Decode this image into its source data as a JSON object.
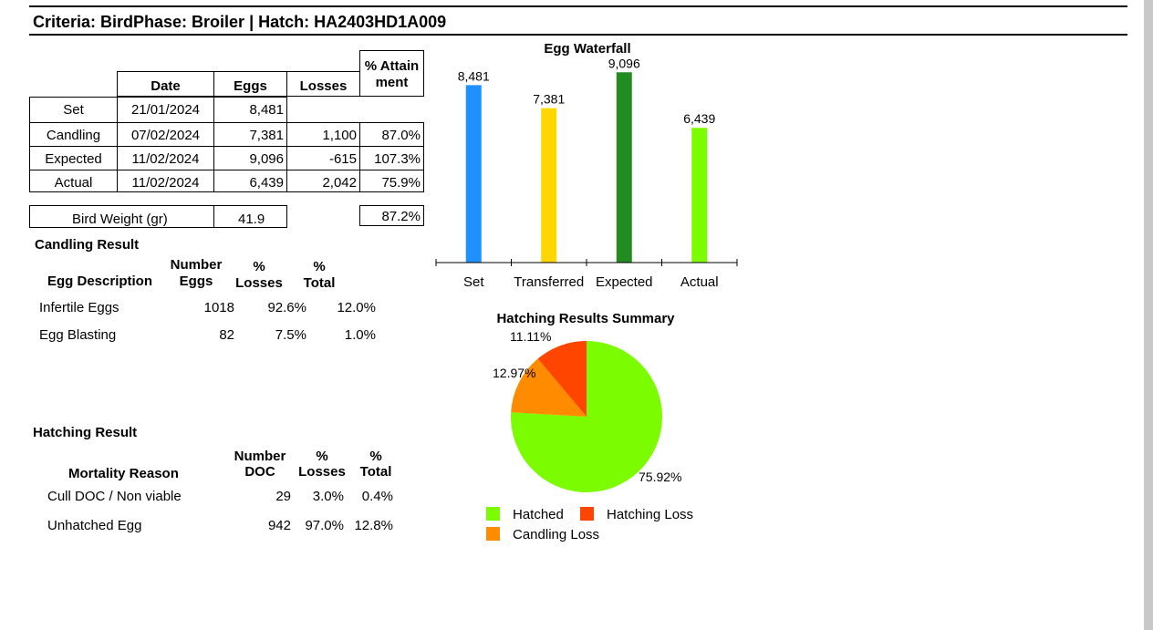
{
  "header": {
    "title": "Criteria: BirdPhase: Broiler | Hatch: HA2403HD1A009"
  },
  "summary_table": {
    "columns": {
      "date": "Date",
      "eggs": "Eggs",
      "losses": "Losses",
      "attain_1": "% Attain",
      "attain_2": "ment"
    },
    "rows": [
      {
        "label": "Set",
        "date": "21/01/2024",
        "eggs": "8,481",
        "losses": "",
        "attain": ""
      },
      {
        "label": "Candling",
        "date": "07/02/2024",
        "eggs": "7,381",
        "losses": "1,100",
        "attain": "87.0%"
      },
      {
        "label": "Expected",
        "date": "11/02/2024",
        "eggs": "9,096",
        "losses": "-615",
        "attain": "107.3%"
      },
      {
        "label": "Actual",
        "date": "11/02/2024",
        "eggs": "6,439",
        "losses": "2,042",
        "attain": "75.9%"
      }
    ],
    "bird_weight": {
      "label": "Bird Weight (gr)",
      "value": "41.9",
      "attain": "87.2%"
    }
  },
  "candling": {
    "title": "Candling Result",
    "columns": {
      "desc": "Egg Description",
      "num_1": "Number",
      "num_2": "Eggs",
      "loss_1": "%",
      "loss_2": "Losses",
      "total_1": "%",
      "total_2": "Total"
    },
    "rows": [
      {
        "desc": "Infertile Eggs",
        "num": "1018",
        "loss": "92.6%",
        "total": "12.0%"
      },
      {
        "desc": "Egg Blasting",
        "num": "82",
        "loss": "7.5%",
        "total": "1.0%"
      }
    ]
  },
  "hatching": {
    "title": "Hatching Result",
    "columns": {
      "reason": "Mortality Reason",
      "num_1": "Number",
      "num_2": "DOC",
      "loss_1": "%",
      "loss_2": "Losses",
      "total_1": "%",
      "total_2": "Total"
    },
    "rows": [
      {
        "reason": "Cull DOC / Non viable",
        "num": "29",
        "loss": "3.0%",
        "total": "0.4%"
      },
      {
        "reason": "Unhatched Egg",
        "num": "942",
        "loss": "97.0%",
        "total": "12.8%"
      }
    ]
  },
  "chart_data": [
    {
      "type": "bar",
      "title": "Egg Waterfall",
      "categories": [
        "Set",
        "Transferred",
        "Expected",
        "Actual"
      ],
      "values": [
        8481,
        7381,
        9096,
        6439
      ],
      "value_labels": [
        "8,481",
        "7,381",
        "9,096",
        "6,439"
      ],
      "colors": [
        "#1e90ff",
        "#ffd700",
        "#228b22",
        "#7cfc00"
      ],
      "ylim": [
        0,
        9500
      ],
      "grid": false
    },
    {
      "type": "pie",
      "title": "Hatching Results Summary",
      "labels": [
        "Hatched",
        "Candling Loss",
        "Hatching Loss"
      ],
      "values": [
        75.92,
        12.97,
        11.11
      ],
      "value_labels": [
        "75.92%",
        "12.97%",
        "11.11%"
      ],
      "colors": [
        "#7cfc00",
        "#ff8c00",
        "#ff4500"
      ],
      "legend": "bottom"
    }
  ]
}
